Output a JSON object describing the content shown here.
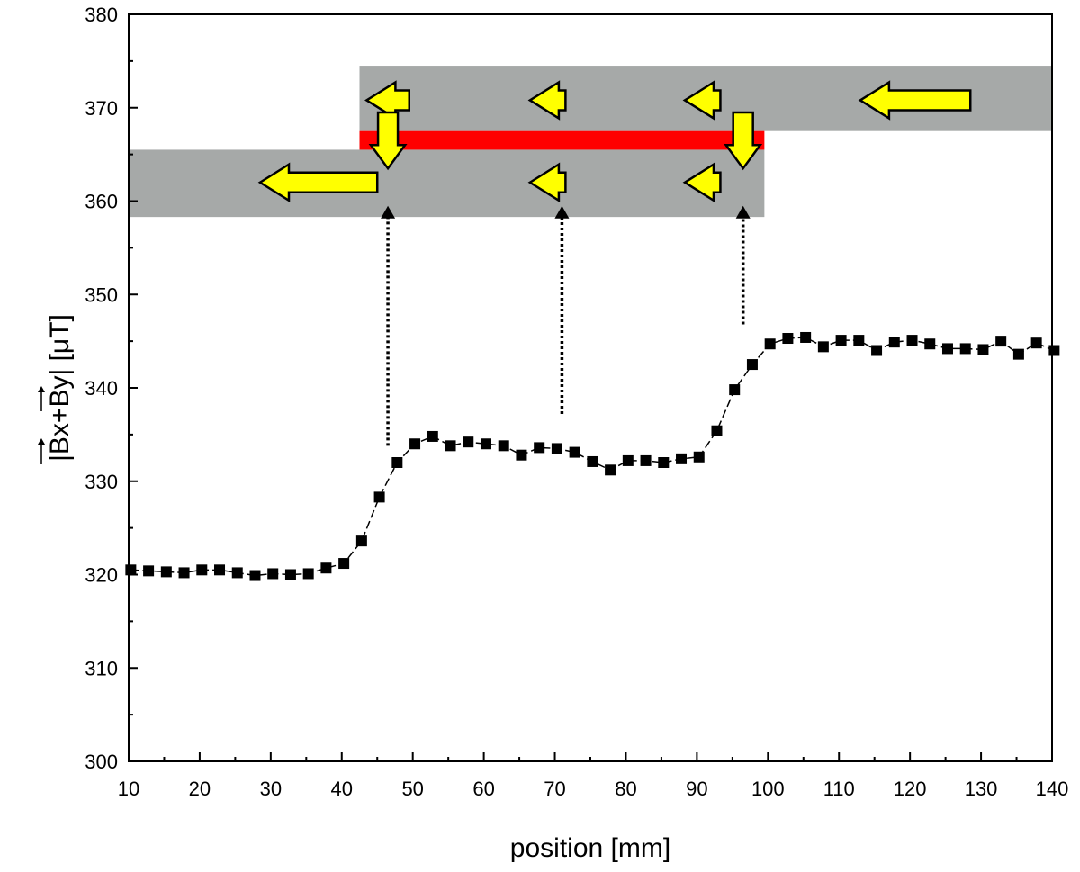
{
  "chart_data": {
    "type": "scatter",
    "xlabel": "position [mm]",
    "ylabel": "|Bx+By| [μT]",
    "ylabel_vector_components": [
      "Bx",
      "By"
    ],
    "xlim": [
      10,
      140
    ],
    "ylim": [
      300,
      380
    ],
    "xticks": [
      10,
      20,
      30,
      40,
      50,
      60,
      70,
      80,
      90,
      100,
      110,
      120,
      130,
      140
    ],
    "yticks": [
      300,
      310,
      320,
      330,
      340,
      350,
      360,
      370,
      380
    ],
    "grid": false,
    "series": [
      {
        "marker": "square",
        "line": "dashed",
        "color": "#000000",
        "x": [
          10.3,
          12.8,
          15.3,
          17.8,
          20.3,
          22.8,
          25.3,
          27.8,
          30.3,
          32.8,
          35.3,
          37.8,
          40.3,
          42.8,
          45.3,
          47.8,
          50.3,
          52.8,
          55.3,
          57.8,
          60.3,
          62.8,
          65.3,
          67.8,
          70.3,
          72.8,
          75.3,
          77.8,
          80.3,
          82.8,
          85.3,
          87.8,
          90.3,
          92.8,
          95.3,
          97.8,
          100.3,
          102.8,
          105.3,
          107.8,
          110.3,
          112.8,
          115.3,
          117.8,
          120.3,
          122.8,
          125.3,
          127.8,
          130.3,
          132.8,
          135.3,
          137.8,
          140.3
        ],
        "y": [
          320.5,
          320.4,
          320.3,
          320.2,
          320.5,
          320.5,
          320.2,
          319.9,
          320.1,
          320.0,
          320.1,
          320.7,
          321.2,
          323.6,
          328.3,
          332.0,
          334.0,
          334.8,
          333.8,
          334.2,
          334.0,
          333.8,
          332.8,
          333.6,
          333.5,
          333.1,
          332.1,
          331.2,
          332.2,
          332.2,
          332.0,
          332.4,
          332.6,
          335.4,
          339.8,
          342.5,
          344.7,
          345.3,
          345.4,
          344.4,
          345.1,
          345.1,
          344.0,
          344.9,
          345.1,
          344.7,
          344.2,
          344.2,
          344.1,
          345.0,
          343.6,
          344.8,
          344.0
        ]
      }
    ],
    "annotations": {
      "colors": {
        "band": "#a6a9a8",
        "wall": "#ff0000",
        "arrow_fill": "#ffff00",
        "arrow_stroke": "#000000"
      },
      "upper_band": {
        "x": [
          42.5,
          140
        ],
        "y": [
          367.5,
          374.5
        ]
      },
      "lower_band": {
        "x": [
          10,
          99.5
        ],
        "y": [
          358.3,
          365.5
        ]
      },
      "red_bar": {
        "x": [
          42.5,
          99.5
        ],
        "y": [
          365.5,
          367.5
        ]
      },
      "left_arrows": [
        {
          "x": [
            43.5,
            49.5
          ],
          "y": 370.8
        },
        {
          "x": [
            66.5,
            71.5
          ],
          "y": 370.8
        },
        {
          "x": [
            88.3,
            93.3
          ],
          "y": 370.8
        },
        {
          "x": [
            113,
            128.5
          ],
          "y": 370.8
        },
        {
          "x": [
            28.5,
            45
          ],
          "y": 362.0
        },
        {
          "x": [
            66.5,
            71.5
          ],
          "y": 362.0
        },
        {
          "x": [
            88.3,
            93.3
          ],
          "y": 362.0
        }
      ],
      "down_arrows": [
        {
          "x": 46.5,
          "y": [
            369.5,
            363.5
          ]
        },
        {
          "x": 96.5,
          "y": [
            369.5,
            363.5
          ]
        }
      ],
      "dotted_arrows": [
        {
          "x": 46.5,
          "y_from": 333.8,
          "y_to": 359.5
        },
        {
          "x": 71.0,
          "y_from": 337.2,
          "y_to": 359.5
        },
        {
          "x": 96.5,
          "y_from": 346.8,
          "y_to": 359.5
        }
      ]
    }
  }
}
